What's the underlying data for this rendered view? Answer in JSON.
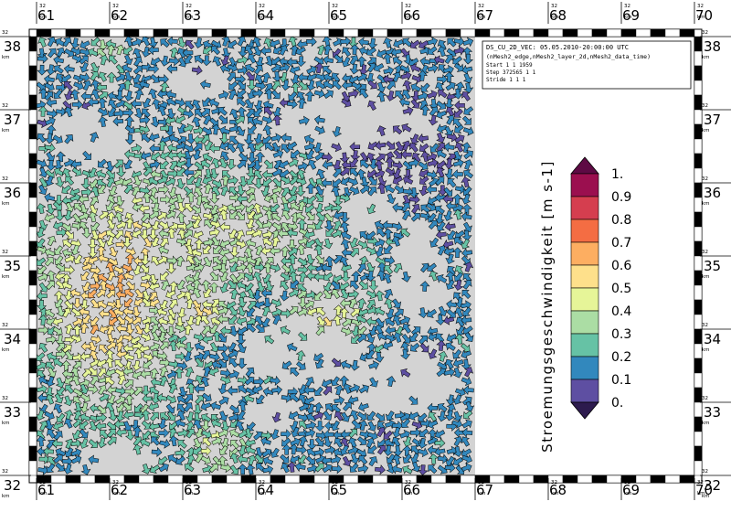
{
  "map": {
    "title_lines": [
      "DS_CU_2D_VEC: 05.05.2010-20:00:00 UTC",
      "(nMesh2_edge,nMesh2_layer_2d,nMesh2_data_time)",
      "Start          1           1        1959",
      "Step    372565        1           1",
      "Stride          1           1           1"
    ],
    "x_ticks": [
      "61",
      "62",
      "63",
      "64",
      "65",
      "66",
      "67",
      "68",
      "69",
      "70"
    ],
    "y_ticks": [
      "38",
      "37",
      "36",
      "35",
      "34",
      "33",
      "32"
    ],
    "zone_prefix": "32",
    "zone_suffix": "km"
  },
  "legend": {
    "title": "Stroemungsgeschwindigkeit [m s-1]",
    "labels": [
      "1.",
      "0.9",
      "0.8",
      "0.7",
      "0.6",
      "0.5",
      "0.4",
      "0.3",
      "0.2",
      "0.1",
      "0."
    ],
    "colors": [
      "#5e0a44",
      "#9b0f4f",
      "#d53e4f",
      "#f46d43",
      "#fdae61",
      "#fee08b",
      "#e6f598",
      "#abdda4",
      "#66c2a5",
      "#3288bd",
      "#5e4fa2",
      "#2d1b4e"
    ]
  },
  "colors": {
    "land": "#d3d3d3",
    "arrow_outline": "#000000",
    "frame": "#000000"
  }
}
